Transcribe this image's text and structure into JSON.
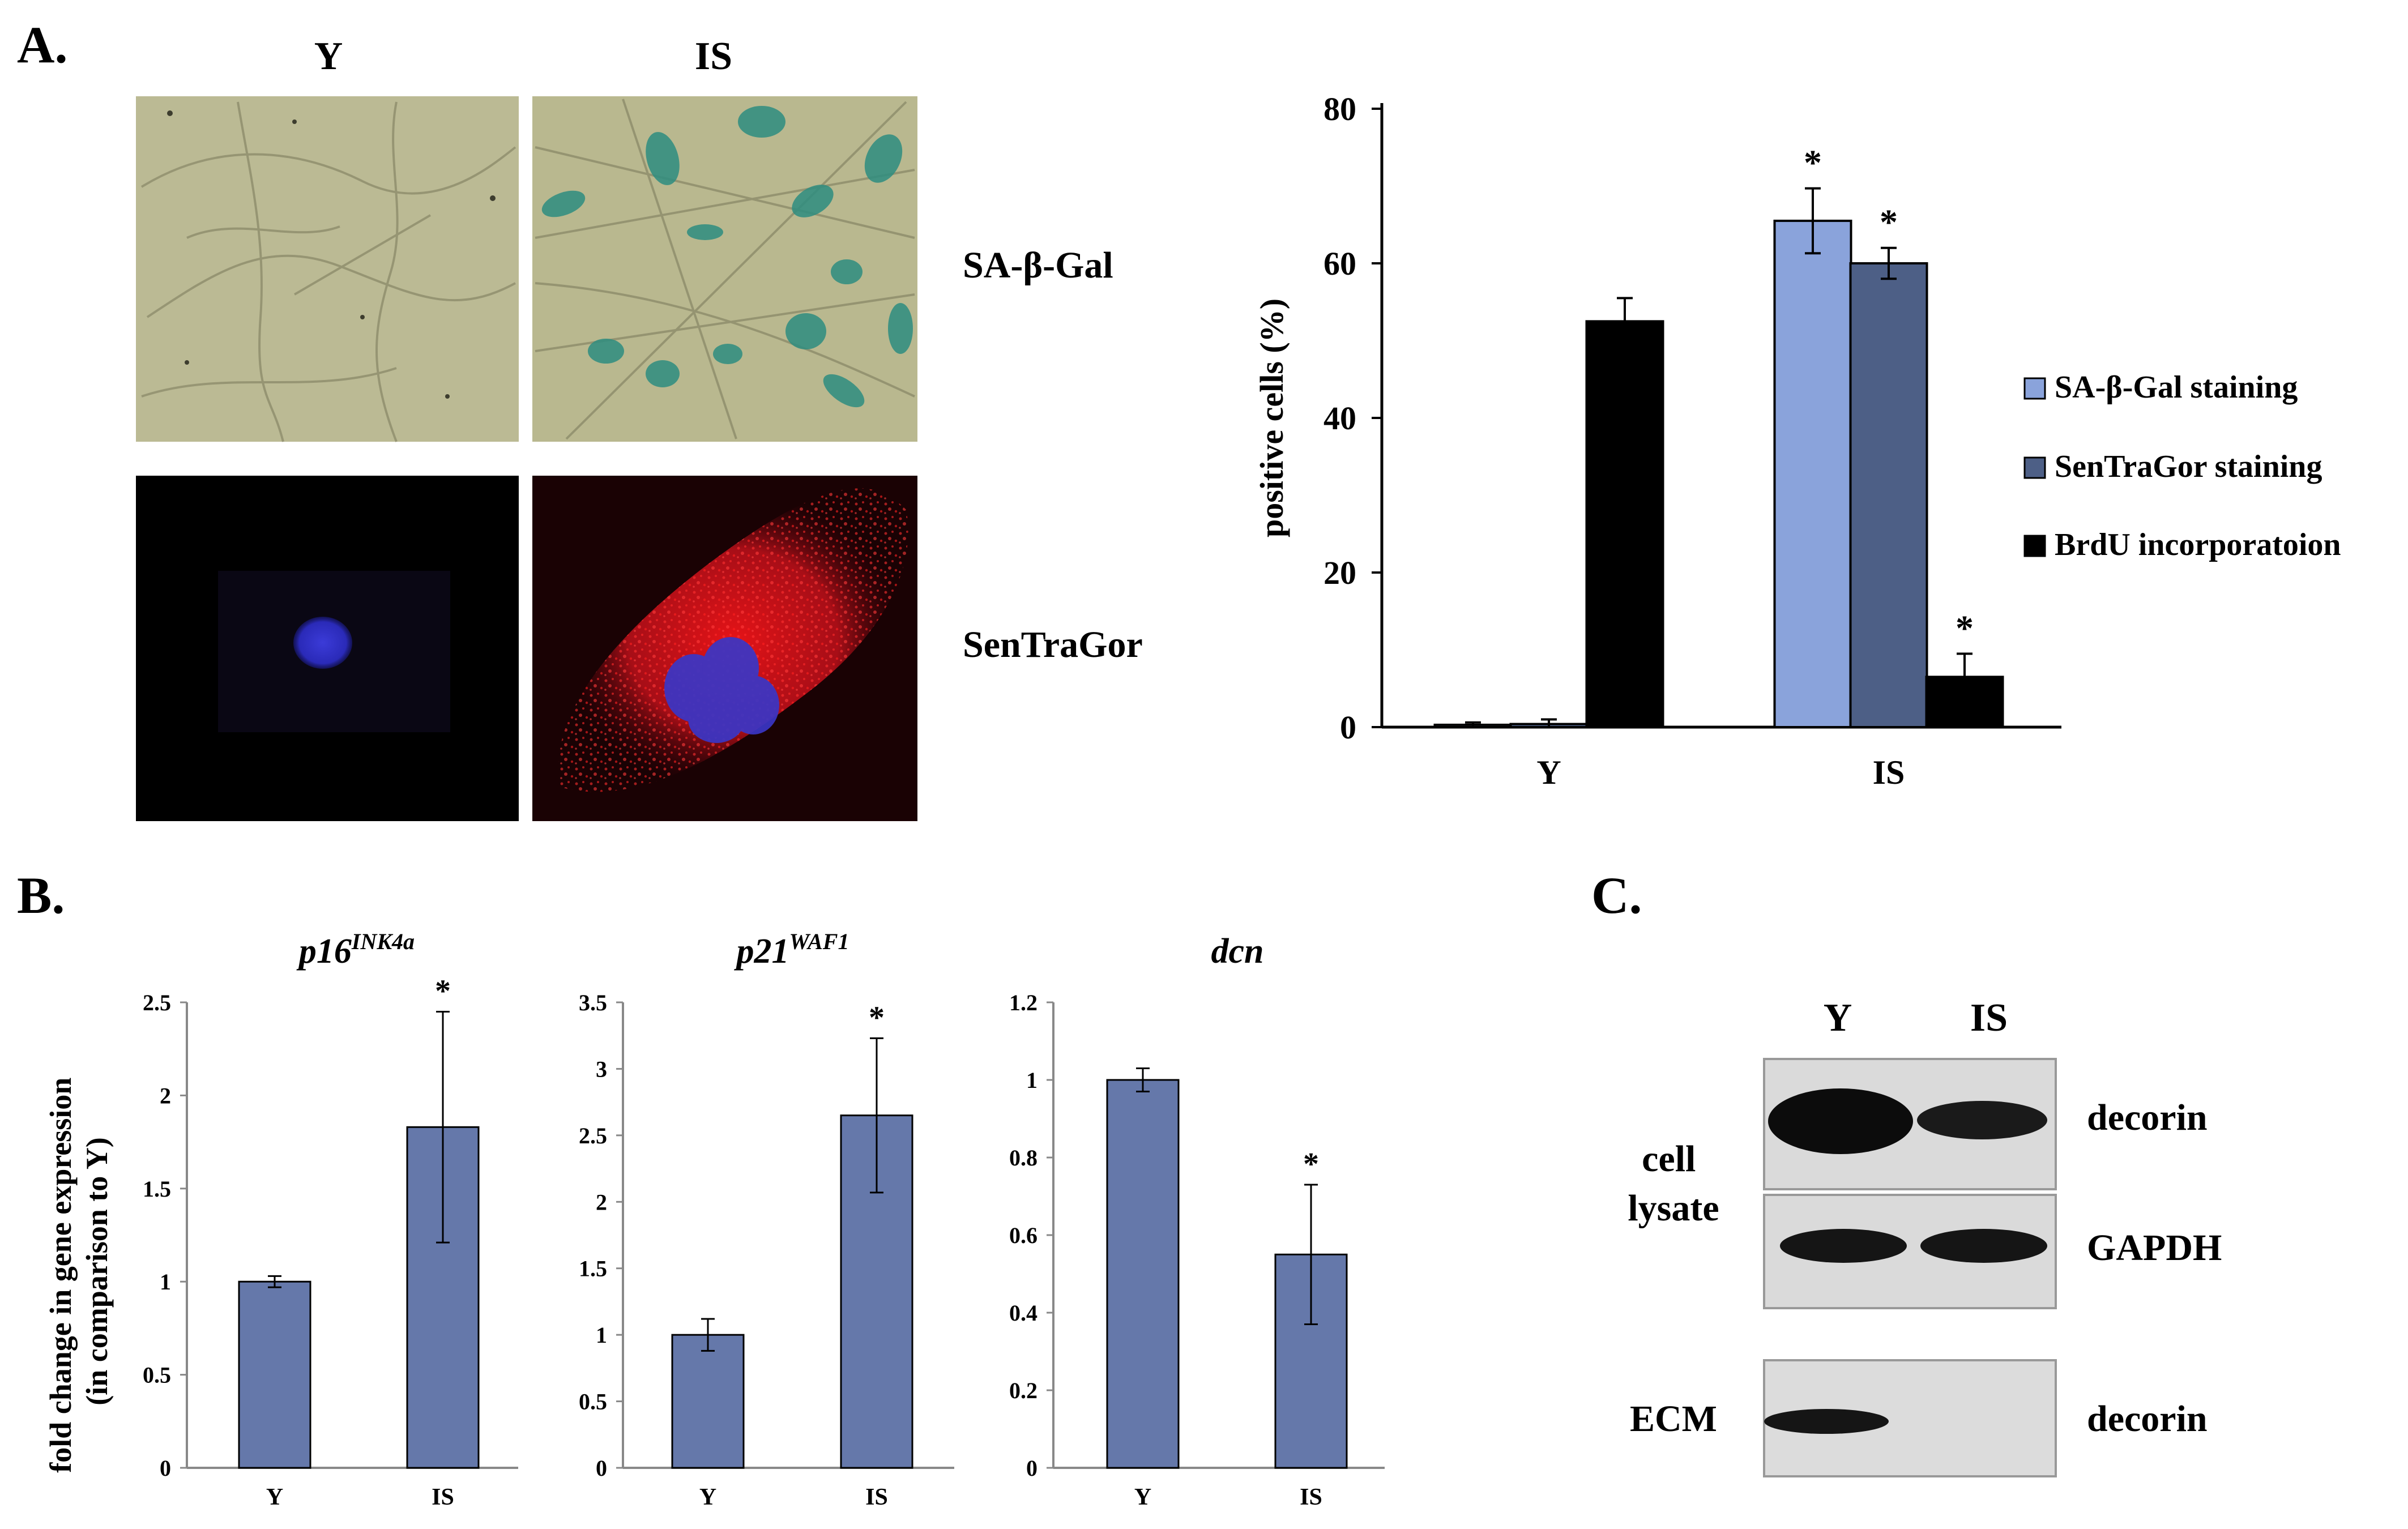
{
  "panels": {
    "a": {
      "label": "A.",
      "col_y": "Y",
      "col_is": "IS",
      "row_sagal": "SA-β-Gal",
      "row_sentragor": "SenTraGor"
    },
    "b": {
      "label": "B.",
      "ylabel_line1": "fold change in gene expression",
      "ylabel_line2": "(in comparison to Y)"
    },
    "c": {
      "label": "C.",
      "lane_y": "Y",
      "lane_is": "IS",
      "group_cell_line1": "cell",
      "group_cell_line2": "lysate",
      "group_ecm": "ECM",
      "band_decorin": "decorin",
      "band_gapdh": "GAPDH",
      "band_ecm_decorin": "decorin"
    }
  },
  "colors": {
    "sagal": "#8aa3db",
    "sentragor": "#4d5f86",
    "brdu": "#000000",
    "gene_bar": "#6578aa",
    "micro_bg": "#b9b892",
    "stain_blue": "#2e8d80",
    "fluor_red": "#e0141a",
    "nucleus": "#3535c8"
  },
  "chart_data": [
    {
      "type": "bar",
      "title": "",
      "categories": [
        "Y",
        "IS"
      ],
      "ylabel": "positive cells (%)",
      "ylim": [
        0,
        80
      ],
      "yticks": [
        "0",
        "20",
        "40",
        "60",
        "80"
      ],
      "legend_position": "right",
      "series": [
        {
          "name": "SA-β-Gal staining",
          "values": [
            0.3,
            65.5
          ],
          "errors": [
            0.3,
            4.2
          ]
        },
        {
          "name": "SenTraGor staining",
          "values": [
            0.4,
            60
          ],
          "errors": [
            0.6,
            2
          ]
        },
        {
          "name": "BrdU incorporatoion",
          "values": [
            52.5,
            6.5
          ],
          "errors": [
            3,
            3
          ]
        }
      ],
      "significance": [
        {
          "label": "*",
          "series": 0,
          "category": 1
        },
        {
          "label": "*",
          "series": 1,
          "category": 1
        },
        {
          "label": "*",
          "series": 2,
          "category": 1
        }
      ]
    },
    {
      "type": "bar",
      "title": "p16",
      "title_super": "INK4a",
      "categories": [
        "Y",
        "IS"
      ],
      "values": [
        1.0,
        1.83
      ],
      "errors": [
        0.03,
        0.62
      ],
      "ylim": [
        0,
        2.5
      ],
      "yticks": [
        "0",
        "0.5",
        "1",
        "1.5",
        "2",
        "2.5"
      ],
      "significance": [
        {
          "label": "*",
          "category": 1
        }
      ]
    },
    {
      "type": "bar",
      "title": "p21",
      "title_super": "WAF1",
      "categories": [
        "Y",
        "IS"
      ],
      "values": [
        1.0,
        2.65
      ],
      "errors": [
        0.12,
        0.58
      ],
      "ylim": [
        0,
        3.5
      ],
      "yticks": [
        "0",
        "0.5",
        "1",
        "1.5",
        "2",
        "2.5",
        "3",
        "3.5"
      ],
      "significance": [
        {
          "label": "*",
          "category": 1
        }
      ]
    },
    {
      "type": "bar",
      "title": "dcn",
      "title_super": "",
      "categories": [
        "Y",
        "IS"
      ],
      "values": [
        1.0,
        0.55
      ],
      "errors": [
        0.03,
        0.18
      ],
      "ylim": [
        0,
        1.2
      ],
      "yticks": [
        "0",
        "0.2",
        "0.4",
        "0.6",
        "0.8",
        "1",
        "1.2"
      ],
      "significance": [
        {
          "label": "*",
          "category": 1
        }
      ]
    }
  ]
}
